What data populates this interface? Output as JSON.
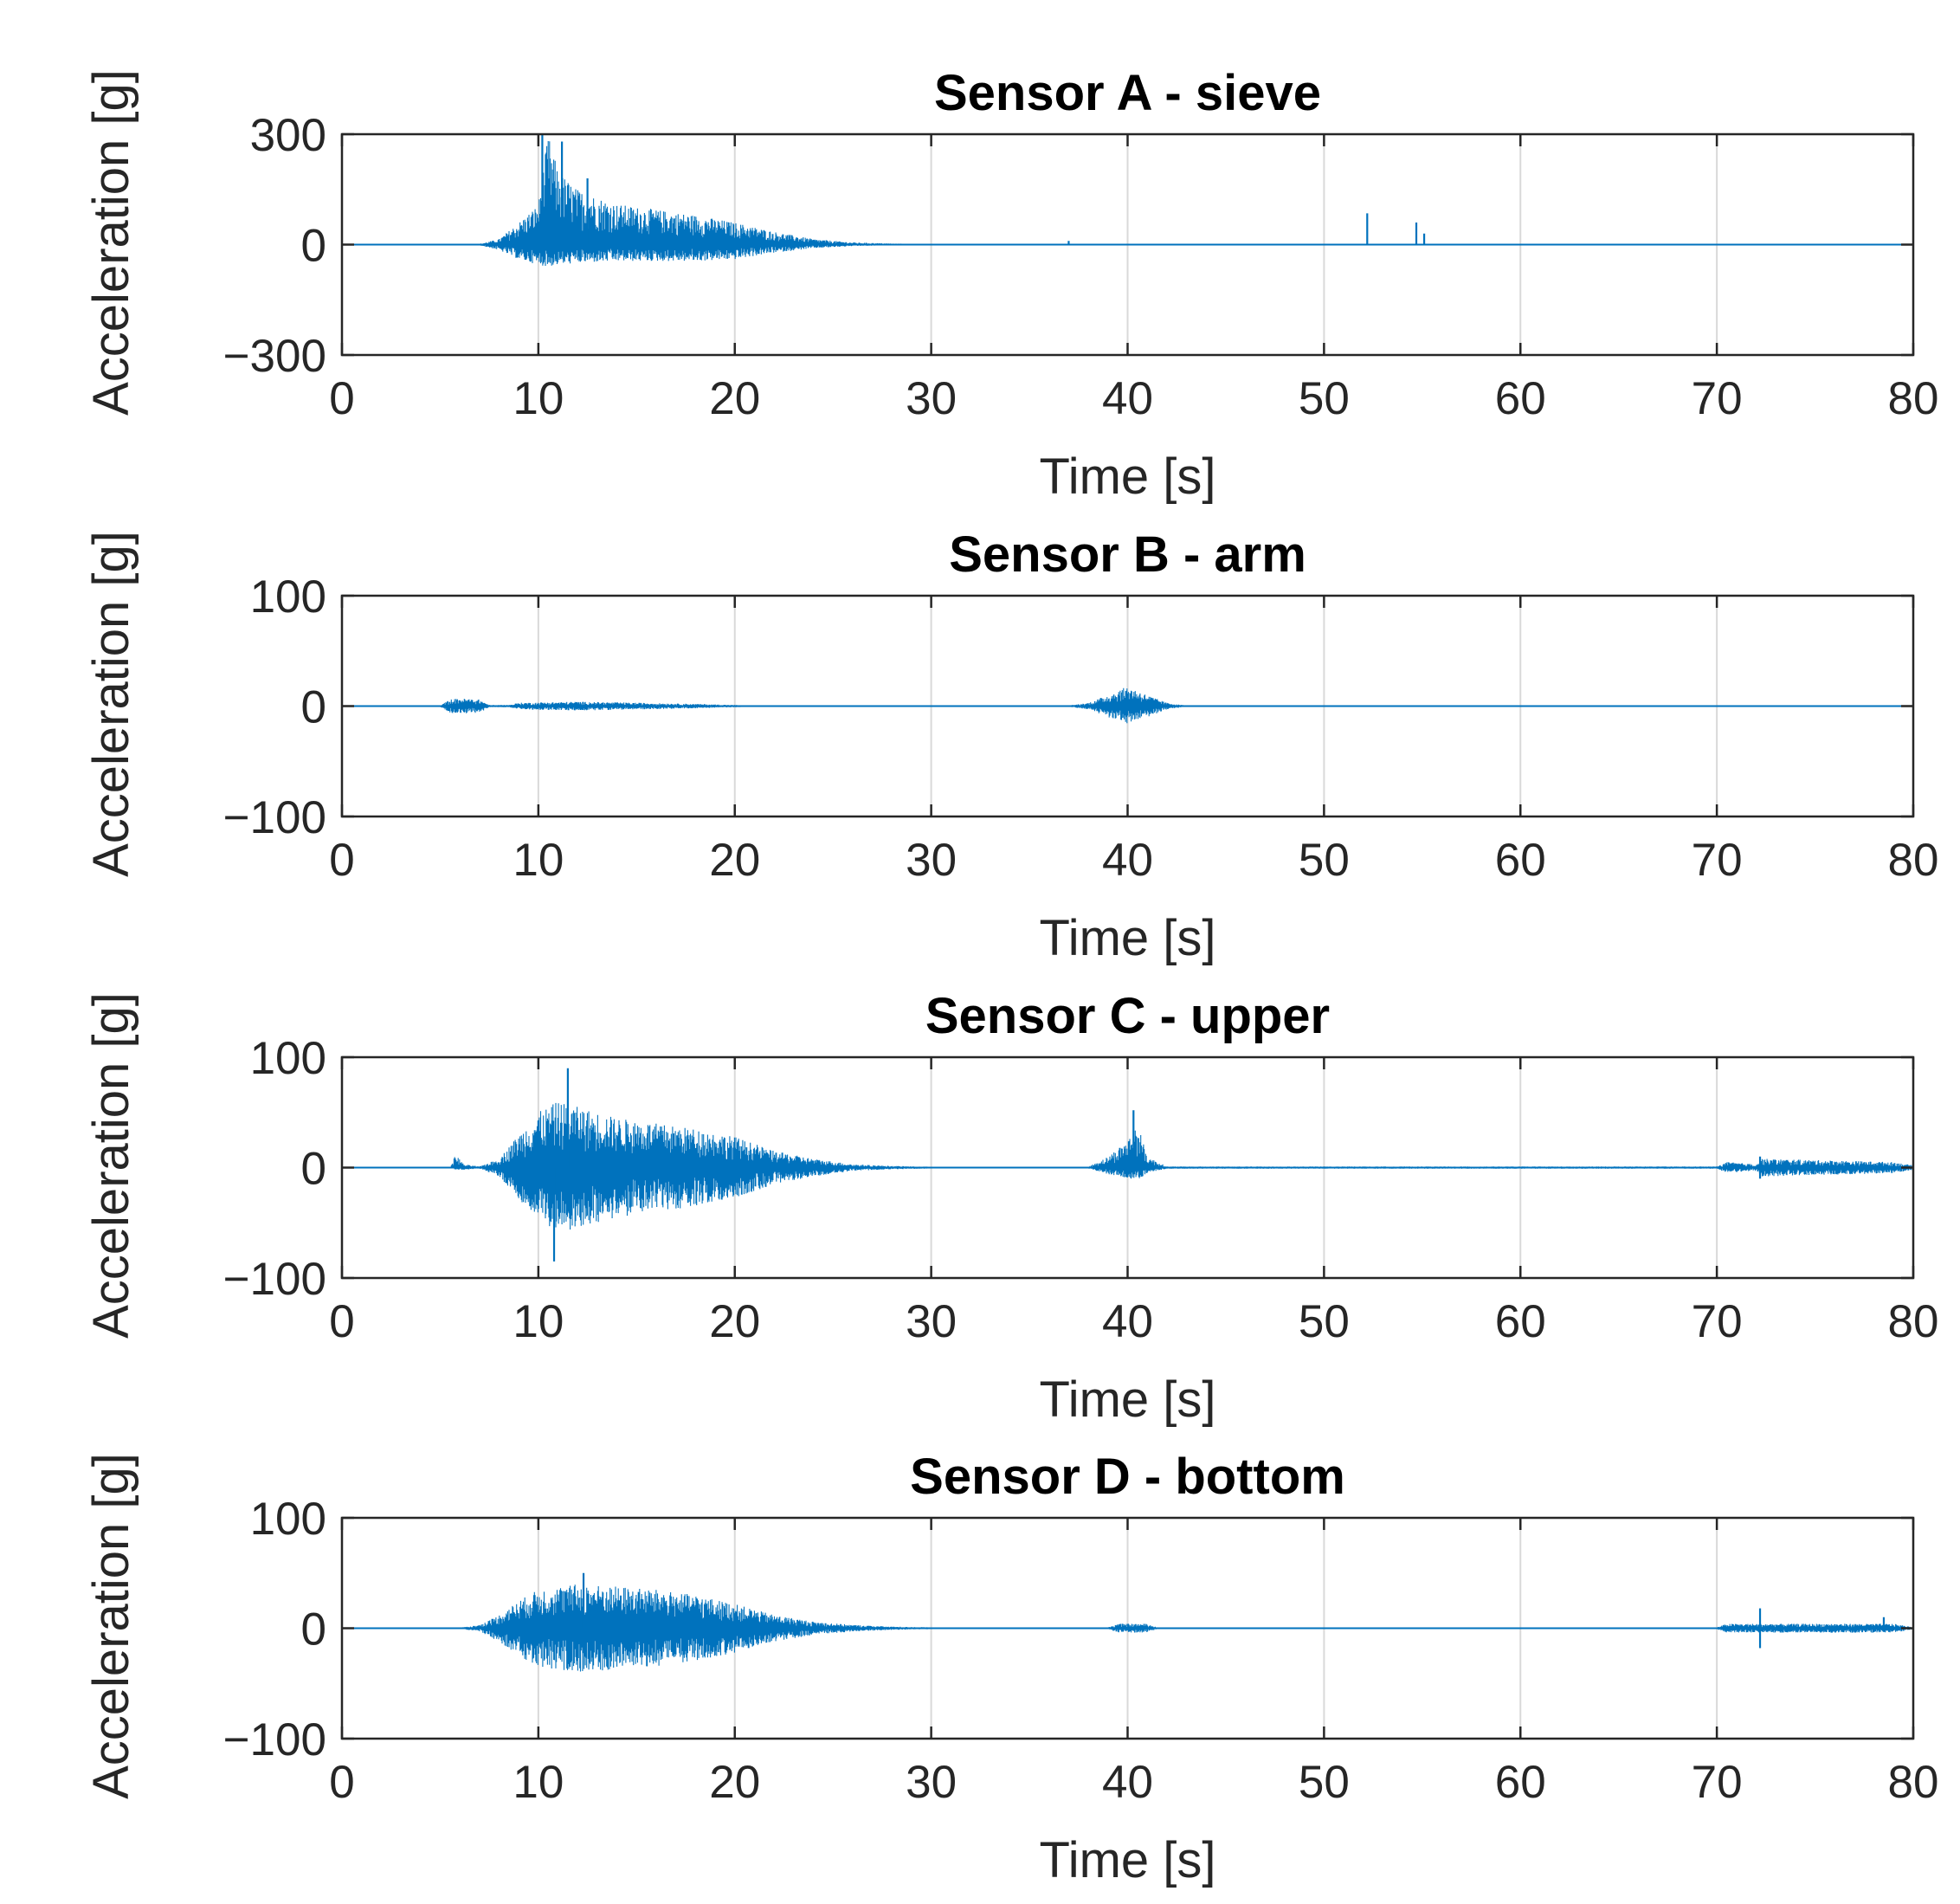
{
  "figure": {
    "signal_color": "#0072bd"
  },
  "chart_data": [
    {
      "type": "line",
      "title": "Sensor A - sieve",
      "xlabel": "Time [s]",
      "ylabel": "Acceleration [g]",
      "xlim": [
        0,
        80
      ],
      "ylim": [
        -300,
        300
      ],
      "xticks": [
        0,
        10,
        20,
        30,
        40,
        50,
        60,
        70,
        80
      ],
      "xtick_labels": [
        "0",
        "10",
        "20",
        "30",
        "40",
        "50",
        "60",
        "70",
        "80"
      ],
      "yticks": [
        -300,
        0,
        300
      ],
      "ytick_labels": [
        "−300",
        "0",
        "300"
      ],
      "grid": true,
      "series": [
        {
          "name": "Sensor A",
          "envelope": {
            "t": [
              0,
              7,
              8,
              9,
              10,
              10.5,
              11,
              12,
              14,
              16,
              18,
              20,
              22,
              24,
              26,
              28,
              30,
              35,
              80
            ],
            "pos": [
              0,
              2,
              15,
              60,
              110,
              300,
              200,
              150,
              110,
              95,
              80,
              60,
              35,
              15,
              6,
              3,
              1,
              0.5,
              0.5
            ],
            "neg": [
              0,
              2,
              15,
              40,
              55,
              60,
              55,
              50,
              45,
              45,
              45,
              40,
              22,
              10,
              4,
              2,
              1,
              0.5,
              0.5
            ]
          },
          "spikes": [
            {
              "t": 10.2,
              "v": 300
            },
            {
              "t": 11.2,
              "v": 280
            },
            {
              "t": 12.5,
              "v": 180
            },
            {
              "t": 52.2,
              "v": 85
            },
            {
              "t": 54.7,
              "v": 60
            },
            {
              "t": 55.1,
              "v": 30
            },
            {
              "t": 37,
              "v": 10
            }
          ]
        }
      ]
    },
    {
      "type": "line",
      "title": "Sensor B - arm",
      "xlabel": "Time [s]",
      "ylabel": "Acceleration [g]",
      "xlim": [
        0,
        80
      ],
      "ylim": [
        -100,
        100
      ],
      "xticks": [
        0,
        10,
        20,
        30,
        40,
        50,
        60,
        70,
        80
      ],
      "xtick_labels": [
        "0",
        "10",
        "20",
        "30",
        "40",
        "50",
        "60",
        "70",
        "80"
      ],
      "yticks": [
        -100,
        0,
        100
      ],
      "ytick_labels": [
        "−100",
        "0",
        "100"
      ],
      "grid": true,
      "series": [
        {
          "name": "Sensor B",
          "envelope": {
            "t": [
              0,
              5,
              5.5,
              6,
              7,
              7.5,
              8.5,
              9,
              12,
              15,
              18,
              20,
              21,
              37,
              38,
              39,
              40,
              41,
              42,
              43,
              80
            ],
            "pos": [
              0.3,
              0.5,
              6,
              7,
              6,
              1,
              1,
              3,
              4,
              3,
              2,
              1,
              0.5,
              0.5,
              3,
              10,
              18,
              10,
              3,
              0.5,
              0.3
            ],
            "neg": [
              0.3,
              0.5,
              6,
              7,
              6,
              1,
              1,
              3,
              4,
              3,
              2,
              1,
              0.5,
              0.5,
              3,
              10,
              16,
              10,
              3,
              0.5,
              0.3
            ]
          },
          "spikes": []
        }
      ]
    },
    {
      "type": "line",
      "title": "Sensor C - upper",
      "xlabel": "Time [s]",
      "ylabel": "Acceleration [g]",
      "xlim": [
        0,
        80
      ],
      "ylim": [
        -100,
        100
      ],
      "xticks": [
        0,
        10,
        20,
        30,
        40,
        50,
        60,
        70,
        80
      ],
      "xtick_labels": [
        "0",
        "10",
        "20",
        "30",
        "40",
        "50",
        "60",
        "70",
        "80"
      ],
      "yticks": [
        -100,
        0,
        100
      ],
      "ytick_labels": [
        "−100",
        "0",
        "100"
      ],
      "grid": true,
      "series": [
        {
          "name": "Sensor C",
          "envelope": {
            "t": [
              0,
              5.5,
              5.8,
              6.2,
              7,
              8,
              9,
              10,
              11,
              12,
              14,
              16,
              18,
              20,
              22,
              24,
              26,
              28,
              30,
              38,
              39,
              40,
              40.5,
              41,
              42,
              70,
              70.5,
              72,
              72.3,
              79,
              80
            ],
            "pos": [
              0.3,
              0.5,
              12,
              3,
              1,
              8,
              30,
              50,
              60,
              55,
              45,
              40,
              35,
              28,
              15,
              8,
              3,
              1.5,
              0.8,
              0.8,
              10,
              25,
              40,
              10,
              1,
              1,
              5,
              3,
              8,
              5,
              2
            ],
            "neg": [
              0.3,
              0.5,
              2,
              2,
              1,
              8,
              30,
              45,
              60,
              55,
              45,
              40,
              35,
              28,
              15,
              8,
              3,
              1.5,
              0.8,
              0.8,
              6,
              10,
              12,
              5,
              1,
              1,
              5,
              3,
              8,
              5,
              2
            ]
          },
          "spikes": [
            {
              "t": 11.5,
              "v": 90
            },
            {
              "t": 10.8,
              "v": -85
            },
            {
              "t": 40.3,
              "v": 52
            },
            {
              "t": 72.2,
              "v": 10
            },
            {
              "t": 72.2,
              "v": -10
            }
          ]
        }
      ]
    },
    {
      "type": "line",
      "title": "Sensor D - bottom",
      "xlabel": "Time [s]",
      "ylabel": "Acceleration [g]",
      "xlim": [
        0,
        80
      ],
      "ylim": [
        -100,
        100
      ],
      "xticks": [
        0,
        10,
        20,
        30,
        40,
        50,
        60,
        70,
        80
      ],
      "xtick_labels": [
        "0",
        "10",
        "20",
        "30",
        "40",
        "50",
        "60",
        "70",
        "80"
      ],
      "yticks": [
        -100,
        0,
        100
      ],
      "ytick_labels": [
        "−100",
        "0",
        "100"
      ],
      "grid": true,
      "series": [
        {
          "name": "Sensor D",
          "envelope": {
            "t": [
              0,
              6,
              7,
              8,
              9,
              10,
              12,
              14,
              16,
              18,
              20,
              22,
              24,
              26,
              28,
              30,
              39,
              39.5,
              41,
              41.5,
              70,
              70.5,
              79,
              80
            ],
            "pos": [
              0.3,
              0.5,
              3,
              12,
              25,
              35,
              40,
              38,
              35,
              30,
              22,
              12,
              6,
              3,
              1.5,
              0.8,
              0.8,
              4,
              4,
              0.8,
              0.8,
              4,
              4,
              1
            ],
            "neg": [
              0.3,
              0.5,
              3,
              12,
              25,
              35,
              40,
              38,
              35,
              30,
              22,
              12,
              6,
              3,
              1.5,
              0.8,
              0.8,
              4,
              4,
              0.8,
              0.8,
              4,
              4,
              1
            ]
          },
          "spikes": [
            {
              "t": 12.3,
              "v": 50
            },
            {
              "t": 72.2,
              "v": 18
            },
            {
              "t": 72.2,
              "v": -18
            },
            {
              "t": 78.5,
              "v": 10
            }
          ]
        }
      ]
    }
  ]
}
